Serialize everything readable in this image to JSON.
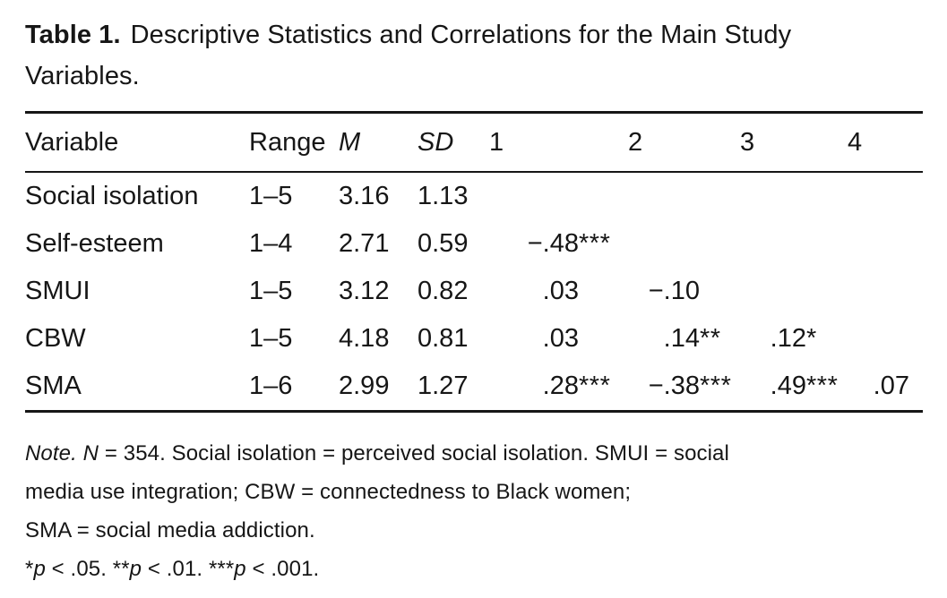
{
  "title": {
    "label": "Table 1.",
    "text": "Descriptive Statistics and Correlations for the Main Study Variables."
  },
  "table": {
    "columns": [
      "Variable",
      "Range",
      "M",
      "SD",
      "1",
      "2",
      "3",
      "4"
    ],
    "rows": [
      {
        "variable": "Social isolation",
        "range": "1–5",
        "m": "3.16",
        "sd": "1.13",
        "c1": {
          "v": "",
          "s": ""
        },
        "c2": {
          "v": "",
          "s": ""
        },
        "c3": {
          "v": "",
          "s": ""
        },
        "c4": {
          "v": "",
          "s": ""
        }
      },
      {
        "variable": "Self-esteem",
        "range": "1–4",
        "m": "2.71",
        "sd": "0.59",
        "c1": {
          "v": "−.48",
          "s": "***"
        },
        "c2": {
          "v": "",
          "s": ""
        },
        "c3": {
          "v": "",
          "s": ""
        },
        "c4": {
          "v": "",
          "s": ""
        }
      },
      {
        "variable": "SMUI",
        "range": "1–5",
        "m": "3.12",
        "sd": "0.82",
        "c1": {
          "v": ".03",
          "s": ""
        },
        "c2": {
          "v": "−.10",
          "s": ""
        },
        "c3": {
          "v": "",
          "s": ""
        },
        "c4": {
          "v": "",
          "s": ""
        }
      },
      {
        "variable": "CBW",
        "range": "1–5",
        "m": "4.18",
        "sd": "0.81",
        "c1": {
          "v": ".03",
          "s": ""
        },
        "c2": {
          "v": ".14",
          "s": "**"
        },
        "c3": {
          "v": ".12",
          "s": "*"
        },
        "c4": {
          "v": "",
          "s": ""
        }
      },
      {
        "variable": "SMA",
        "range": "1–6",
        "m": "2.99",
        "sd": "1.27",
        "c1": {
          "v": ".28",
          "s": "***"
        },
        "c2": {
          "v": "−.38",
          "s": "***"
        },
        "c3": {
          "v": ".49",
          "s": "***"
        },
        "c4": {
          "v": ".07",
          "s": ""
        }
      }
    ]
  },
  "note": {
    "line1": {
      "note_label": "Note.",
      "n_label": "N",
      "text": " = 354. Social isolation = perceived social isolation. SMUI = social"
    },
    "line2": "media use integration; CBW = connectedness to Black women;",
    "line3": "SMA = social media addiction.",
    "sig": [
      {
        "stars": "*",
        "p": "p",
        "text": " < .05. "
      },
      {
        "stars": "**",
        "p": "p",
        "text": " < .01. "
      },
      {
        "stars": "***",
        "p": "p",
        "text": " < .001."
      }
    ]
  },
  "colors": {
    "background": "#ffffff",
    "text": "#161616",
    "rule": "#161616"
  },
  "chart_data": {
    "type": "table",
    "title": "Table 1. Descriptive Statistics and Correlations for the Main Study Variables.",
    "columns": [
      "Variable",
      "Range",
      "M",
      "SD",
      "1",
      "2",
      "3",
      "4"
    ],
    "rows": [
      [
        "Social isolation",
        "1–5",
        3.16,
        1.13,
        "",
        "",
        "",
        ""
      ],
      [
        "Self-esteem",
        "1–4",
        2.71,
        0.59,
        "−.48***",
        "",
        "",
        ""
      ],
      [
        "SMUI",
        "1–5",
        3.12,
        0.82,
        ".03",
        "−.10",
        "",
        ""
      ],
      [
        "CBW",
        "1–5",
        4.18,
        0.81,
        ".03",
        ".14**",
        ".12*",
        ""
      ],
      [
        "SMA",
        "1–6",
        2.99,
        1.27,
        ".28***",
        "−.38***",
        ".49***",
        ".07"
      ]
    ],
    "note": "Note. N = 354. Social isolation = perceived social isolation. SMUI = social media use integration; CBW = connectedness to Black women; SMA = social media addiction. *p < .05. **p < .01. ***p < .001."
  }
}
